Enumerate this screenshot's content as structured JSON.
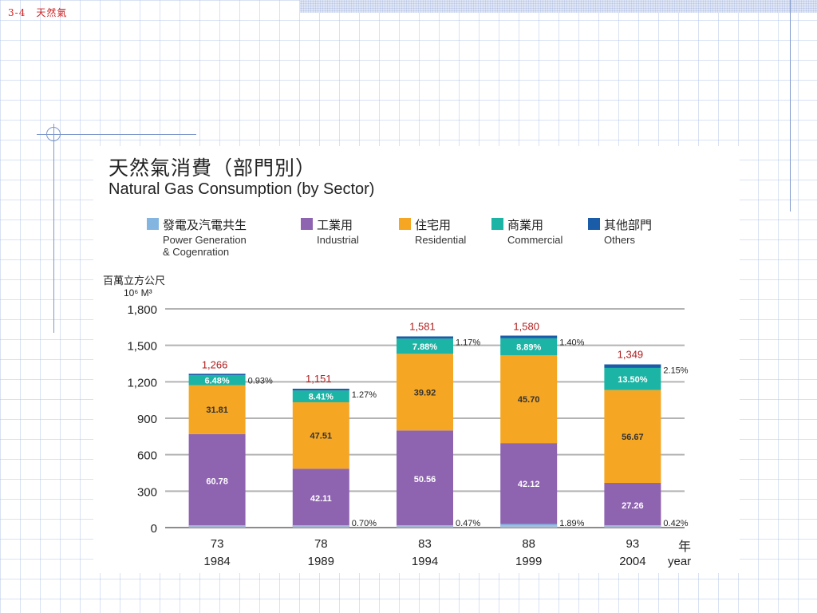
{
  "slide": {
    "label": "3-4　天然氣"
  },
  "chart_data": {
    "type": "bar",
    "stacked": true,
    "title": "天然氣消費（部門別）",
    "subtitle": "Natural Gas Consumption (by Sector)",
    "unit_zh": "百萬立方公尺",
    "unit_en": "10⁶ M³",
    "x_unit_zh": "年",
    "x_unit_en": "year",
    "categories_roc": [
      "73",
      "78",
      "83",
      "88",
      "93"
    ],
    "categories": [
      "1984",
      "1989",
      "1994",
      "1999",
      "2004"
    ],
    "ylim": [
      0,
      1800
    ],
    "yticks": [
      "0",
      "300",
      "600",
      "900",
      "1,200",
      "1,500",
      "1,800"
    ],
    "grid": true,
    "legend_position": "top",
    "totals": [
      1266,
      1151,
      1581,
      1580,
      1349
    ],
    "totals_labels": [
      "1,266",
      "1,151",
      "1,581",
      "1,580",
      "1,349"
    ],
    "series": [
      {
        "name_zh": "發電及汽電共生",
        "name_en": "Power Generation\n& Cogenration",
        "color": "#84b5e0",
        "percent": [
          0,
          0,
          0,
          1.89,
          0
        ],
        "labels": [
          "",
          "",
          "",
          "1.89%",
          ""
        ]
      },
      {
        "name_zh": "工業用",
        "name_en": "Industrial",
        "color": "#8e63b0",
        "percent": [
          60.78,
          42.11,
          50.56,
          42.12,
          27.26
        ],
        "labels": [
          "60.78",
          "42.11",
          "50.56",
          "42.12",
          "27.26"
        ]
      },
      {
        "name_zh": "住宅用",
        "name_en": "Residential",
        "color": "#f5a623",
        "percent": [
          31.81,
          47.51,
          39.92,
          45.7,
          56.67
        ],
        "labels": [
          "31.81",
          "47.51",
          "39.92",
          "45.70",
          "56.67"
        ]
      },
      {
        "name_zh": "商業用",
        "name_en": "Commercial",
        "color": "#1cb4a4",
        "percent": [
          6.48,
          8.41,
          7.88,
          8.89,
          13.5
        ],
        "labels": [
          "6.48%",
          "8.41%",
          "7.88%",
          "8.89%",
          "13.50%"
        ]
      },
      {
        "name_zh": "其他部門",
        "name_en": "Others",
        "color": "#1a5ca8",
        "percent": [
          0.93,
          1.27,
          1.17,
          1.4,
          2.15
        ],
        "labels": [
          "0.93%",
          "1.27%",
          "1.17%",
          "1.40%",
          "2.15%"
        ]
      }
    ],
    "bottom_labels": [
      "",
      "0.70%",
      "0.47%",
      "",
      "0.42%"
    ]
  }
}
